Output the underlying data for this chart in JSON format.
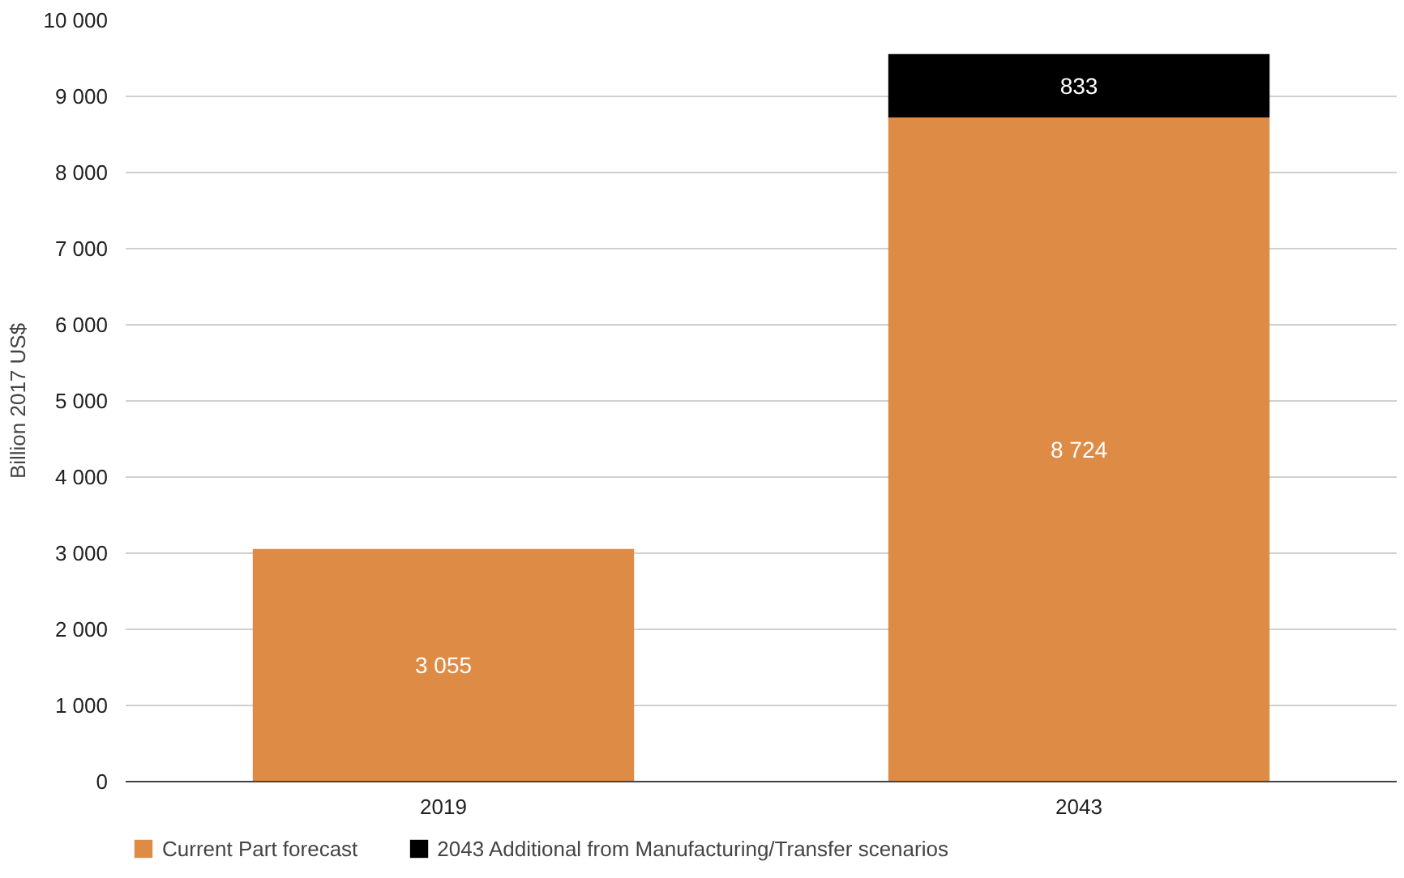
{
  "chart_data": {
    "type": "bar",
    "stacked": true,
    "categories": [
      "2019",
      "2043"
    ],
    "ylabel": "Billion 2017 US$",
    "series": [
      {
        "name": "Current Part forecast",
        "color": "#de8b45",
        "values": [
          3055,
          8724
        ]
      },
      {
        "name": "2043 Additional from Manufacturing/Transfer scenarios",
        "color": "#000000",
        "values": [
          null,
          833
        ]
      }
    ],
    "ylim": [
      0,
      10000
    ],
    "yticks": [
      {
        "value": 0,
        "label": "0"
      },
      {
        "value": 1000,
        "label": "1 000"
      },
      {
        "value": 2000,
        "label": "2 000"
      },
      {
        "value": 3000,
        "label": "3 000"
      },
      {
        "value": 4000,
        "label": "4 000"
      },
      {
        "value": 5000,
        "label": "5 000"
      },
      {
        "value": 6000,
        "label": "6 000"
      },
      {
        "value": 7000,
        "label": "7 000"
      },
      {
        "value": 8000,
        "label": "8 000"
      },
      {
        "value": 9000,
        "label": "9 000"
      },
      {
        "value": 10000,
        "label": "10 000"
      }
    ],
    "grid": "y",
    "legend": "bottom left",
    "data_labels": true
  }
}
